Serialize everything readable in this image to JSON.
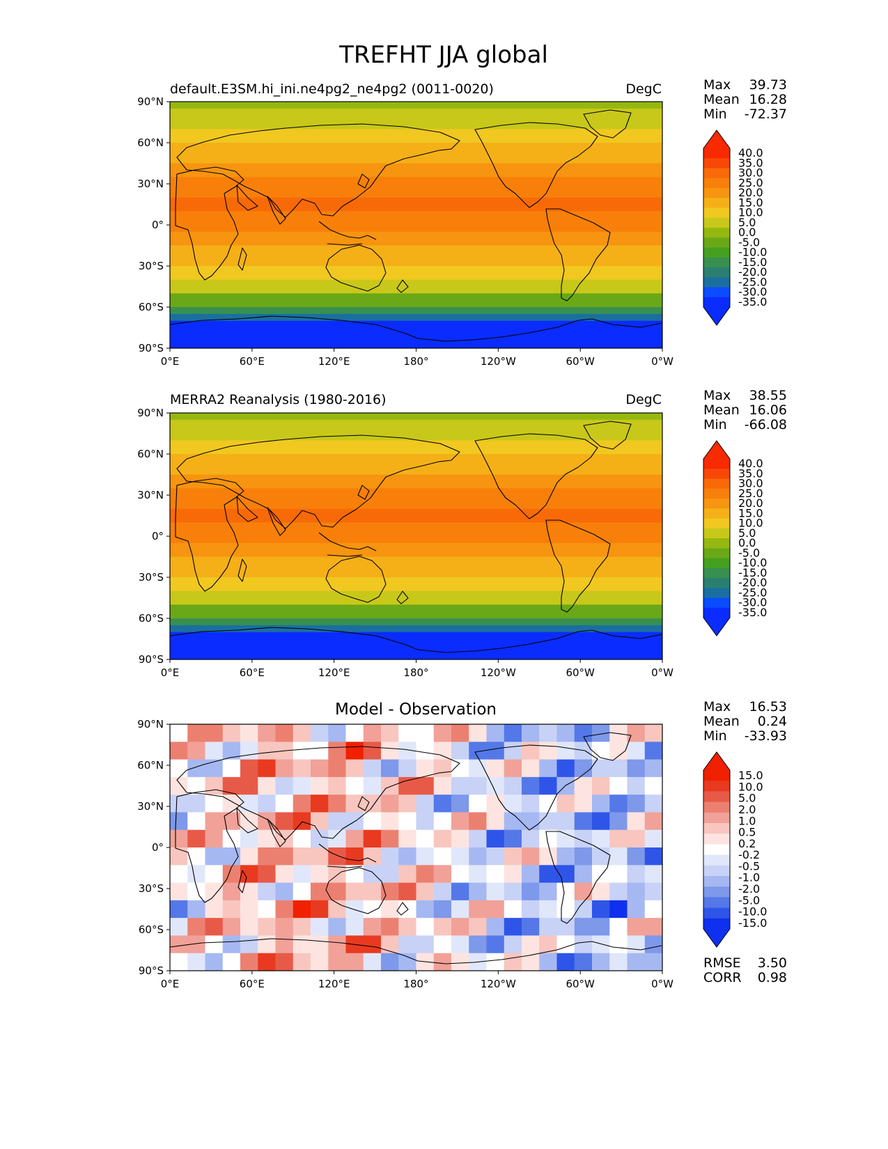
{
  "title": "TREFHT JJA global",
  "x_ticks": [
    "0°E",
    "60°E",
    "120°E",
    "180°",
    "120°W",
    "60°W",
    "0°W"
  ],
  "y_ticks": [
    "90°N",
    "60°N",
    "30°N",
    "0°",
    "30°S",
    "60°S",
    "90°S"
  ],
  "panels": [
    {
      "id": "model",
      "left_title": "default.E3SM.hi_ini.ne4pg2_ne4pg2 (0011-0020)",
      "center_title": "",
      "right_title": "DegC",
      "stats": [
        {
          "label": "Max",
          "value": "39.73"
        },
        {
          "label": "Mean",
          "value": "16.28"
        },
        {
          "label": "Min",
          "value": "-72.37"
        }
      ],
      "colorbar_labels": [
        "40.0",
        "35.0",
        "30.0",
        "25.0",
        "20.0",
        "15.0",
        "10.0",
        "5.0",
        "0.0",
        "-5.0",
        "-10.0",
        "-15.0",
        "-20.0",
        "-25.0",
        "-30.0",
        "-35.0"
      ],
      "extra_stats": []
    },
    {
      "id": "obs",
      "left_title": "MERRA2 Reanalysis (1980-2016)",
      "center_title": "",
      "right_title": "DegC",
      "stats": [
        {
          "label": "Max",
          "value": "38.55"
        },
        {
          "label": "Mean",
          "value": "16.06"
        },
        {
          "label": "Min",
          "value": "-66.08"
        }
      ],
      "colorbar_labels": [
        "40.0",
        "35.0",
        "30.0",
        "25.0",
        "20.0",
        "15.0",
        "10.0",
        "5.0",
        "0.0",
        "-5.0",
        "-10.0",
        "-15.0",
        "-20.0",
        "-25.0",
        "-30.0",
        "-35.0"
      ],
      "extra_stats": []
    },
    {
      "id": "diff",
      "left_title": "",
      "center_title": "Model - Observation",
      "right_title": "",
      "stats": [
        {
          "label": "Max",
          "value": "16.53"
        },
        {
          "label": "Mean",
          "value": "0.24"
        },
        {
          "label": "Min",
          "value": "-33.93"
        }
      ],
      "colorbar_labels": [
        "15.0",
        "10.0",
        "5.0",
        "2.0",
        "1.0",
        "0.5",
        "0.2",
        "-0.2",
        "-0.5",
        "-1.0",
        "-2.0",
        "-5.0",
        "-10.0",
        "-15.0"
      ],
      "extra_stats": [
        {
          "label": "RMSE",
          "value": "3.50"
        },
        {
          "label": "CORR",
          "value": "0.98"
        }
      ]
    }
  ],
  "colors": {
    "temperature_scale": [
      "#0a2cff",
      "#0a4cff",
      "#1a6fa0",
      "#2a8070",
      "#389050",
      "#45a020",
      "#6aa818",
      "#95b810",
      "#c8c81a",
      "#f0c820",
      "#f5b018",
      "#f79410",
      "#f8800a",
      "#f86a08",
      "#f84808",
      "#f82a00"
    ],
    "difference_scale": [
      "#1030f0",
      "#2f55e8",
      "#5478e8",
      "#7e98ea",
      "#a6b8f2",
      "#c7d2f6",
      "#e0e7fb",
      "#ffffff",
      "#fde4e0",
      "#f8c6bf",
      "#f1a198",
      "#ec8070",
      "#e85a48",
      "#e83a20",
      "#f02000"
    ]
  },
  "chart_data": {
    "type": "heatmap",
    "description_fields": {
      "variable": "TREFHT",
      "season": "JJA",
      "region": "global"
    },
    "panels": [
      {
        "name": "default.E3SM.hi_ini.ne4pg2_ne4pg2 (0011-0020)",
        "units": "DegC",
        "max": 39.73,
        "mean": 16.28,
        "min": -72.37,
        "levels": [
          -35,
          -30,
          -25,
          -20,
          -15,
          -10,
          -5,
          0,
          5,
          10,
          15,
          20,
          25,
          30,
          35,
          40
        ]
      },
      {
        "name": "MERRA2 Reanalysis (1980-2016)",
        "units": "DegC",
        "max": 38.55,
        "mean": 16.06,
        "min": -66.08,
        "levels": [
          -35,
          -30,
          -25,
          -20,
          -15,
          -10,
          -5,
          0,
          5,
          10,
          15,
          20,
          25,
          30,
          35,
          40
        ]
      },
      {
        "name": "Model - Observation",
        "max": 16.53,
        "mean": 0.24,
        "min": -33.93,
        "rmse": 3.5,
        "corr": 0.98,
        "levels": [
          -15,
          -10,
          -5,
          -2,
          -1,
          -0.5,
          -0.2,
          0.2,
          0.5,
          1,
          2,
          5,
          10,
          15
        ]
      }
    ],
    "xlim": [
      0,
      360
    ],
    "ylim": [
      -90,
      90
    ]
  }
}
